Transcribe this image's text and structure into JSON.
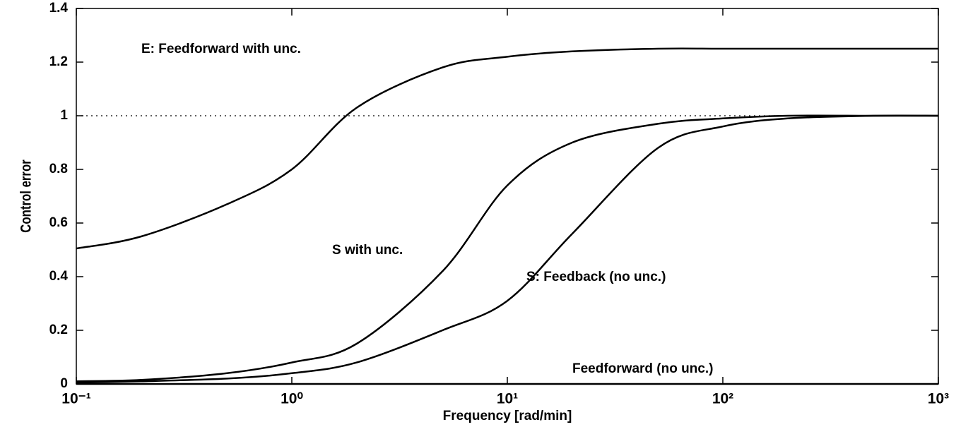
{
  "chart_data": {
    "type": "line",
    "xlabel": "Frequency [rad/min]",
    "ylabel": "Control error",
    "xscale": "log",
    "x": [
      0.1,
      0.2,
      0.5,
      1,
      2,
      5,
      10,
      20,
      50,
      100,
      200,
      500,
      1000
    ],
    "series": [
      {
        "name": "E: Feedforward with unc.",
        "color": "#000000",
        "values": [
          0.505,
          0.55,
          0.67,
          0.8,
          1.03,
          1.18,
          1.22,
          1.24,
          1.25,
          1.25,
          1.25,
          1.25,
          1.25
        ]
      },
      {
        "name": "S with unc.",
        "color": "#000000",
        "values": [
          0.01,
          0.015,
          0.04,
          0.08,
          0.15,
          0.42,
          0.74,
          0.9,
          0.97,
          0.99,
          1.0,
          1.0,
          1.0
        ]
      },
      {
        "name": "S: Feedback (no unc.)",
        "color": "#000000",
        "values": [
          0.005,
          0.01,
          0.02,
          0.04,
          0.08,
          0.2,
          0.31,
          0.56,
          0.88,
          0.96,
          0.99,
          1.0,
          1.0
        ]
      },
      {
        "name": "Feedforward (no unc.)",
        "color": "#000000",
        "values": [
          0,
          0,
          0,
          0,
          0,
          0,
          0,
          0,
          0,
          0,
          0,
          0,
          0
        ]
      }
    ],
    "reference_line": 1,
    "xlim": [
      0.1,
      1000
    ],
    "ylim": [
      0,
      1.4
    ],
    "xticks": [
      {
        "value": 0.1,
        "label": "10⁻¹"
      },
      {
        "value": 1,
        "label": "10⁰"
      },
      {
        "value": 10,
        "label": "10¹"
      },
      {
        "value": 100,
        "label": "10²"
      },
      {
        "value": 1000,
        "label": "10³"
      }
    ],
    "yticks": [
      0,
      0.2,
      0.4,
      0.6,
      0.8,
      1,
      1.2,
      1.4
    ],
    "grid": false
  }
}
